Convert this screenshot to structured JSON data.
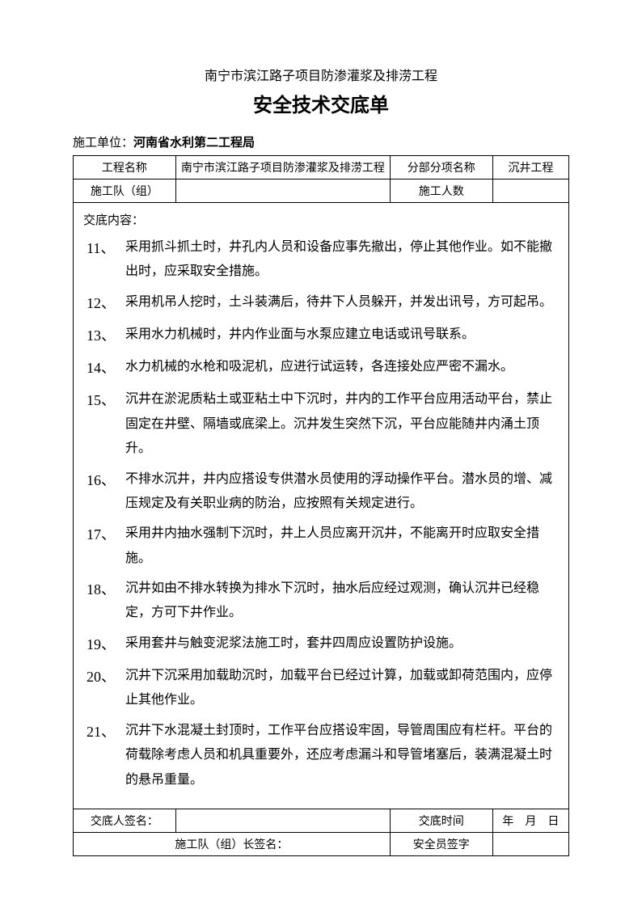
{
  "subtitle": "南宁市滨江路子项目防渗灌浆及排涝工程",
  "title": "安全技术交底单",
  "unit_label": "施工单位：",
  "unit_name": "河南省水利第二工程局",
  "header_row1": {
    "c1": "工程名称",
    "c2": "南宁市滨江路子项目防渗灌浆及排涝工程",
    "c3": "分部分项名称",
    "c4": "沉井工程"
  },
  "header_row2": {
    "c1": "施工队（组）",
    "c2": "",
    "c3": "施工人数",
    "c4": ""
  },
  "content_header": "交底内容：",
  "items": [
    {
      "n": "11、",
      "t": "采用抓斗抓土时，井孔内人员和设备应事先撤出，停止其他作业。如不能撤出时，应采取安全措施。"
    },
    {
      "n": "12、",
      "t": "采用机吊人挖时，土斗装满后，待井下人员躲开，并发出讯号，方可起吊。"
    },
    {
      "n": "13、",
      "t": "采用水力机械时，井内作业面与水泵应建立电话或讯号联系。"
    },
    {
      "n": "14、",
      "t": "水力机械的水枪和吸泥机，应进行试运转，各连接处应严密不漏水。"
    },
    {
      "n": "15、",
      "t": "沉井在淤泥质粘土或亚粘土中下沉时，井内的工作平台应用活动平台，禁止固定在井壁、隔墙或底梁上。沉井发生突然下沉，平台应能随井内涌土顶升。"
    },
    {
      "n": "16、",
      "t": "不排水沉井，井内应搭设专供潜水员使用的浮动操作平台。潜水员的增、减压规定及有关职业病的防治，应按照有关规定进行。"
    },
    {
      "n": "17、",
      "t": "采用井内抽水强制下沉时，井上人员应离开沉井，不能离开时应取安全措施。"
    },
    {
      "n": "18、",
      "t": "沉井如由不排水转换为排水下沉时，抽水后应经过观测，确认沉井已经稳定，方可下井作业。"
    },
    {
      "n": "19、",
      "t": "采用套井与触变泥浆法施工时，套井四周应设置防护设施。"
    },
    {
      "n": "20、",
      "t": "沉井下沉采用加载助沉时，加载平台已经过计算，加载或卸荷范围内，应停止其他作业。"
    },
    {
      "n": "21、",
      "t": "沉井下水混凝土封顶时，工作平台应搭设牢固，导管周围应有栏杆。平台的荷载除考虑人员和机具重要外，还应考虑漏斗和导管堵塞后，装满混凝土时的悬吊重量。"
    }
  ],
  "footer_row1": {
    "c1": "交底人签名：",
    "c2": "",
    "c3": "交底时间",
    "c4": "年　月　日"
  },
  "footer_row2": {
    "c1": "施工队（组）长签名：",
    "c2": "",
    "c3": "安全员签字",
    "c4": ""
  }
}
